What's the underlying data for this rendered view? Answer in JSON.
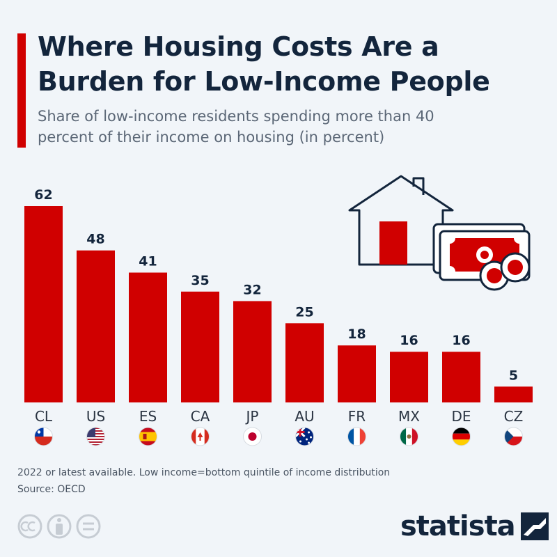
{
  "header": {
    "title": "Where Housing Costs Are a Burden for Low-Income People",
    "subtitle": "Share of low-income residents spending more than 40 percent of their income on housing (in percent)"
  },
  "chart_data": {
    "type": "bar",
    "title": "Where Housing Costs Are a Burden for Low-Income People",
    "subtitle": "Share of low-income residents spending more than 40 percent of their income on housing (in percent)",
    "categories": [
      "CL",
      "US",
      "ES",
      "CA",
      "JP",
      "AU",
      "FR",
      "MX",
      "DE",
      "CZ"
    ],
    "values": [
      62,
      48,
      41,
      35,
      32,
      25,
      18,
      16,
      16,
      5
    ],
    "ylim": [
      0,
      62
    ],
    "data_labels": true,
    "grid": false,
    "bar_color": "#d00000"
  },
  "flags": [
    "chile-flag-icon",
    "usa-flag-icon",
    "spain-flag-icon",
    "canada-flag-icon",
    "japan-flag-icon",
    "australia-flag-icon",
    "france-flag-icon",
    "mexico-flag-icon",
    "germany-flag-icon",
    "czechia-flag-icon"
  ],
  "footer": {
    "note": "2022 or latest available. Low income=bottom quintile of income distribution",
    "source": "Source: OECD",
    "logo_text": "statista"
  },
  "colors": {
    "accent": "#d00000",
    "text": "#13253c",
    "background": "#f1f5f9"
  }
}
